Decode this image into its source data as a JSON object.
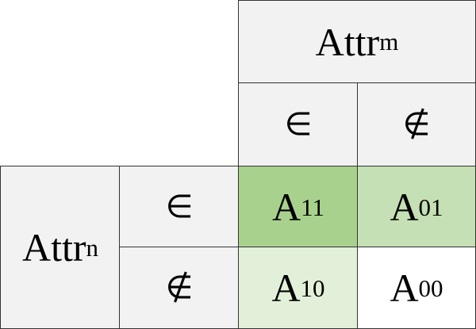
{
  "column_header": {
    "base": "Attr",
    "sub": "m"
  },
  "row_header": {
    "base": "Attr",
    "sub": "n"
  },
  "col_symbols": [
    "∈",
    "∉"
  ],
  "row_symbols": [
    "∈",
    "∉"
  ],
  "cells": [
    {
      "base": "A",
      "sub": "11",
      "color": "#a9d18e"
    },
    {
      "base": "A",
      "sub": "01",
      "color": "#c5e0b4"
    },
    {
      "base": "A",
      "sub": "10",
      "color": "#e2f0d9"
    },
    {
      "base": "A",
      "sub": "00",
      "color": "#ffffff"
    }
  ],
  "header_color": "#f2f2f2"
}
